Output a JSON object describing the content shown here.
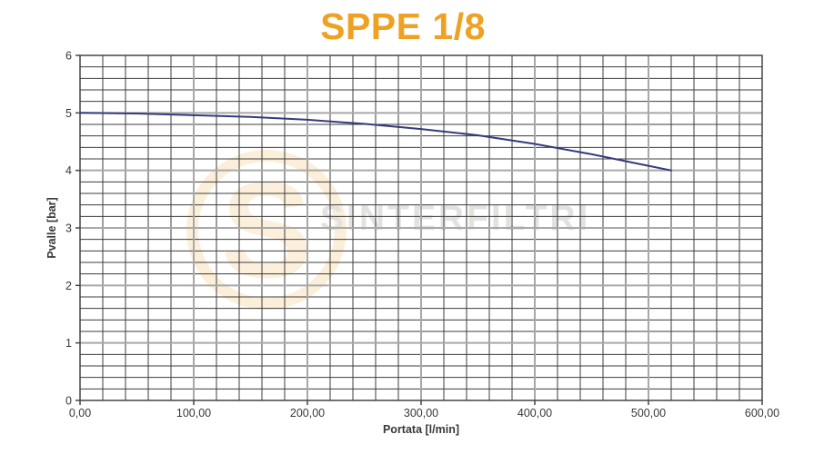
{
  "title": {
    "text": "SPPE 1/8"
  },
  "watermark": {
    "text": "SINTERFILTRI",
    "logo_letter": "S"
  },
  "colors": {
    "title": "#EFA124",
    "curve": "#353B7E",
    "grid_major": "#A8A8A8",
    "grid_minor": "#3D3D3D",
    "axis": "#454545",
    "watermark_text": "#E4E2E0",
    "watermark_logo": "#F4C478"
  },
  "chart_data": {
    "type": "line",
    "title": "SPPE 1/8",
    "xlabel": "Portata [l/min]",
    "ylabel": "Pvalle [bar]",
    "xlim": [
      0,
      600
    ],
    "ylim": [
      0,
      6
    ],
    "x_major_step": 100,
    "x_minor_step": 20,
    "y_major_step": 1,
    "y_minor_step": 0.2,
    "x_tick_labels": [
      "0,00",
      "100,00",
      "200,00",
      "300,00",
      "400,00",
      "500,00",
      "600,00"
    ],
    "y_tick_labels": [
      "0",
      "1",
      "2",
      "3",
      "4",
      "5",
      "6"
    ],
    "grid": true,
    "legend": "none",
    "series": [
      {
        "name": "Pvalle",
        "color": "#353B7E",
        "points": [
          [
            0,
            5.0
          ],
          [
            50,
            4.99
          ],
          [
            100,
            4.96
          ],
          [
            150,
            4.93
          ],
          [
            200,
            4.88
          ],
          [
            250,
            4.81
          ],
          [
            300,
            4.72
          ],
          [
            350,
            4.61
          ],
          [
            400,
            4.46
          ],
          [
            450,
            4.28
          ],
          [
            500,
            4.08
          ],
          [
            520,
            4.0
          ]
        ]
      }
    ]
  }
}
